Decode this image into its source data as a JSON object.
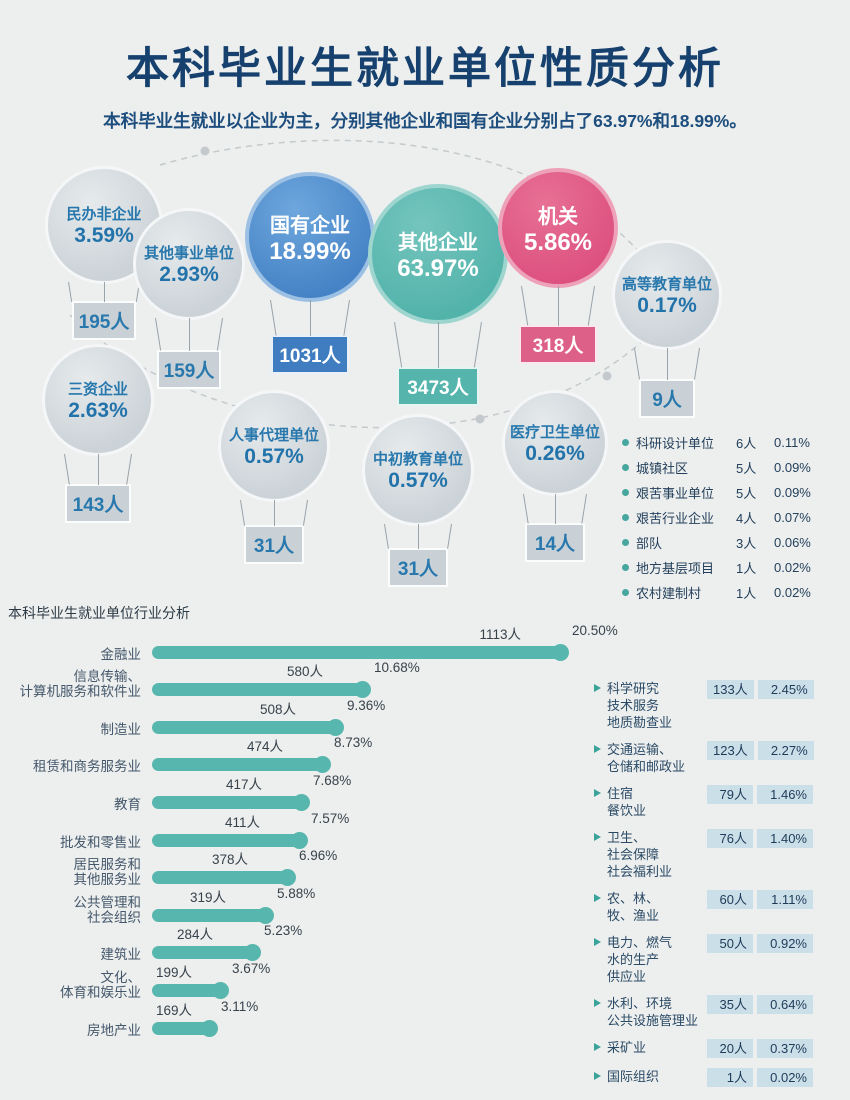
{
  "page": {
    "title": "本科毕业生就业单位性质分析",
    "subtitle": "本科毕业生就业以企业为主，分别其他企业和国有企业分别占了63.97%和18.99%。",
    "section2_title": "本科毕业生就业单位行业分析"
  },
  "colors": {
    "background": "#edefee",
    "title_navy": "#16406d",
    "balloon_gray": "#ccd3d8",
    "balloon_blue": "#4583c6",
    "balloon_teal": "#52b3ab",
    "balloon_pink": "#dd5180",
    "bar_teal": "#57b7ae",
    "value_box_blue": "#cbdfe9",
    "text_navy": "#24405c"
  },
  "balloons": [
    {
      "label": "民办非企业",
      "pct": "3.59%",
      "count": "195人"
    },
    {
      "label": "其他事业单位",
      "pct": "2.93%",
      "count": "159人"
    },
    {
      "label": "国有企业",
      "pct": "18.99%",
      "count": "1031人"
    },
    {
      "label": "其他企业",
      "pct": "63.97%",
      "count": "3473人"
    },
    {
      "label": "机关",
      "pct": "5.86%",
      "count": "318人"
    },
    {
      "label": "高等教育单位",
      "pct": "0.17%",
      "count": "9人"
    },
    {
      "label": "三资企业",
      "pct": "2.63%",
      "count": "143人"
    },
    {
      "label": "人事代理单位",
      "pct": "0.57%",
      "count": "31人"
    },
    {
      "label": "中初教育单位",
      "pct": "0.57%",
      "count": "31人"
    },
    {
      "label": "医疗卫生单位",
      "pct": "0.26%",
      "count": "14人"
    }
  ],
  "legend": [
    {
      "label": "科研设计单位",
      "count": "6人",
      "pct": "0.11%"
    },
    {
      "label": "城镇社区",
      "count": "5人",
      "pct": "0.09%"
    },
    {
      "label": "艰苦事业单位",
      "count": "5人",
      "pct": "0.09%"
    },
    {
      "label": "艰苦行业企业",
      "count": "4人",
      "pct": "0.07%"
    },
    {
      "label": "部队",
      "count": "3人",
      "pct": "0.06%"
    },
    {
      "label": "地方基层项目",
      "count": "1人",
      "pct": "0.02%"
    },
    {
      "label": "农村建制村",
      "count": "1人",
      "pct": "0.02%"
    }
  ],
  "industries": [
    {
      "label": "金融业",
      "count": "1113人",
      "pct": "20.50%",
      "percent": 20.5
    },
    {
      "label": "信息传输、\n计算机服务和软件业",
      "count": "580人",
      "pct": "10.68%",
      "percent": 10.68
    },
    {
      "label": "制造业",
      "count": "508人",
      "pct": "9.36%",
      "percent": 9.36
    },
    {
      "label": "租赁和商务服务业",
      "count": "474人",
      "pct": "8.73%",
      "percent": 8.73
    },
    {
      "label": "教育",
      "count": "417人",
      "pct": "7.68%",
      "percent": 7.68
    },
    {
      "label": "批发和零售业",
      "count": "411人",
      "pct": "7.57%",
      "percent": 7.57
    },
    {
      "label": "居民服务和\n其他服务业",
      "count": "378人",
      "pct": "6.96%",
      "percent": 6.96
    },
    {
      "label": "公共管理和\n社会组织",
      "count": "319人",
      "pct": "5.88%",
      "percent": 5.88
    },
    {
      "label": "建筑业",
      "count": "284人",
      "pct": "5.23%",
      "percent": 5.23
    },
    {
      "label": "文化、\n体育和娱乐业",
      "count": "199人",
      "pct": "3.67%",
      "percent": 3.67
    },
    {
      "label": "房地产业",
      "count": "169人",
      "pct": "3.11%",
      "percent": 3.11
    }
  ],
  "industries_right": [
    {
      "label": "科学研究\n技术服务\n地质勘查业",
      "count": "133人",
      "pct": "2.45%"
    },
    {
      "label": "交通运输、\n仓储和邮政业",
      "count": "123人",
      "pct": "2.27%"
    },
    {
      "label": "住宿\n餐饮业",
      "count": "79人",
      "pct": "1.46%"
    },
    {
      "label": "卫生、\n社会保障\n社会福利业",
      "count": "76人",
      "pct": "1.40%"
    },
    {
      "label": "农、林、\n牧、渔业",
      "count": "60人",
      "pct": "1.11%"
    },
    {
      "label": "电力、燃气\n水的生产\n供应业",
      "count": "50人",
      "pct": "0.92%"
    },
    {
      "label": "水利、环境\n公共设施管理业",
      "count": "35人",
      "pct": "0.64%"
    },
    {
      "label": "采矿业",
      "count": "20人",
      "pct": "0.37%"
    },
    {
      "label": "国际组织",
      "count": "1人",
      "pct": "0.02%"
    }
  ],
  "chart_data": [
    {
      "type": "pie",
      "title": "本科毕业生就业单位性质分析",
      "subtitle": "本科毕业生就业以企业为主，分别其他企业和国有企业分别占了63.97%和18.99%。",
      "categories": [
        "其他企业",
        "国有企业",
        "机关",
        "民办非企业",
        "其他事业单位",
        "三资企业",
        "人事代理单位",
        "中初教育单位",
        "医疗卫生单位",
        "高等教育单位",
        "科研设计单位",
        "城镇社区",
        "艰苦事业单位",
        "艰苦行业企业",
        "部队",
        "地方基层项目",
        "农村建制村"
      ],
      "counts": [
        3473,
        1031,
        318,
        195,
        159,
        143,
        31,
        31,
        14,
        9,
        6,
        5,
        5,
        4,
        3,
        1,
        1
      ],
      "percents": [
        63.97,
        18.99,
        5.86,
        3.59,
        2.93,
        2.63,
        0.57,
        0.57,
        0.26,
        0.17,
        0.11,
        0.09,
        0.09,
        0.07,
        0.06,
        0.02,
        0.02
      ]
    },
    {
      "type": "bar",
      "orientation": "horizontal",
      "title": "本科毕业生就业单位行业分析",
      "categories": [
        "金融业",
        "信息传输、计算机服务和软件业",
        "制造业",
        "租赁和商务服务业",
        "教育",
        "批发和零售业",
        "居民服务和其他服务业",
        "公共管理和社会组织",
        "建筑业",
        "文化、体育和娱乐业",
        "房地产业",
        "科学研究技术服务地质勘查业",
        "交通运输、仓储和邮政业",
        "住宿餐饮业",
        "卫生、社会保障社会福利业",
        "农、林、牧、渔业",
        "电力、燃气水的生产供应业",
        "水利、环境公共设施管理业",
        "采矿业",
        "国际组织"
      ],
      "counts": [
        1113,
        580,
        508,
        474,
        417,
        411,
        378,
        319,
        284,
        199,
        169,
        133,
        123,
        79,
        76,
        60,
        50,
        35,
        20,
        1
      ],
      "percents": [
        20.5,
        10.68,
        9.36,
        8.73,
        7.68,
        7.57,
        6.96,
        5.88,
        5.23,
        3.67,
        3.11,
        2.45,
        2.27,
        1.46,
        1.4,
        1.11,
        0.92,
        0.64,
        0.37,
        0.02
      ],
      "xlim": [
        0,
        21
      ],
      "grid": false,
      "legend_position": "none"
    }
  ]
}
